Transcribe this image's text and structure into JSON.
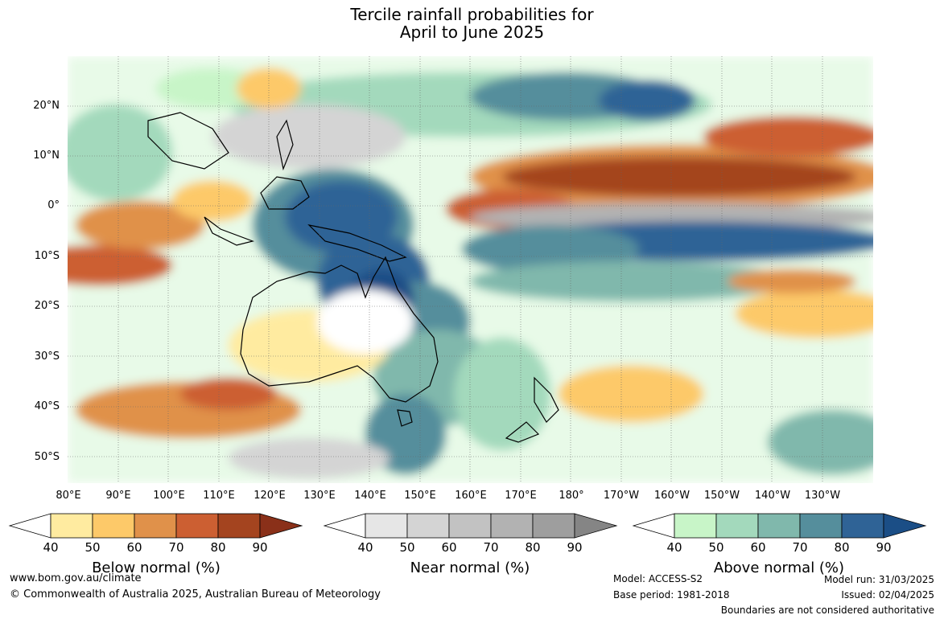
{
  "title": {
    "line1": "Tercile rainfall probabilities for",
    "line2": "April to June 2025"
  },
  "lat_labels": [
    "20°N",
    "10°N",
    "0°",
    "10°S",
    "20°S",
    "30°S",
    "40°S",
    "50°S"
  ],
  "lon_labels": [
    "80°E",
    "90°E",
    "100°E",
    "110°E",
    "120°E",
    "130°E",
    "140°E",
    "150°E",
    "160°E",
    "170°E",
    "180°",
    "170°W",
    "160°W",
    "150°W",
    "140°W",
    "130°W"
  ],
  "colorbars": [
    {
      "title": "Below normal (%)",
      "ticks": [
        "40",
        "50",
        "60",
        "70",
        "80",
        "90"
      ],
      "colors": [
        "#ffeba0",
        "#fdc969",
        "#e0914a",
        "#cc5f32",
        "#a4441f",
        "#8a3019"
      ]
    },
    {
      "title": "Near normal (%)",
      "ticks": [
        "40",
        "50",
        "60",
        "70",
        "80",
        "90"
      ],
      "colors": [
        "#e6e6e6",
        "#d4d4d4",
        "#c2c2c2",
        "#b2b2b2",
        "#9e9e9e",
        "#858585"
      ]
    },
    {
      "title": "Above normal (%)",
      "ticks": [
        "40",
        "50",
        "60",
        "70",
        "80",
        "90"
      ],
      "colors": [
        "#c8f5c8",
        "#a3d9bc",
        "#80b8ac",
        "#558e9c",
        "#2f6396",
        "#1b4e86"
      ]
    }
  ],
  "footer": {
    "url": "www.bom.gov.au/climate",
    "copyright": "© Commonwealth of Australia 2025, Australian Bureau of Meteorology",
    "model": "Model: ACCESS-S2",
    "base_period": "Base period: 1981-2018",
    "model_run": "Model run: 31/03/2025",
    "issued": "Issued: 02/04/2025",
    "disclaimer": "Boundaries are not considered authoritative"
  }
}
